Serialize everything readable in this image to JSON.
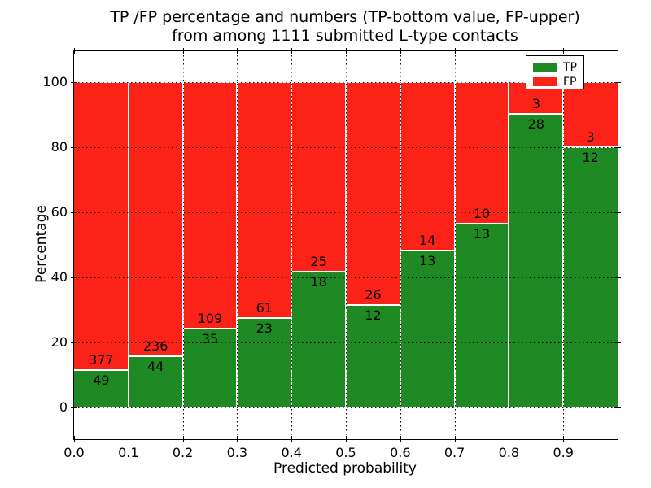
{
  "chart_data": {
    "type": "bar",
    "variant": "stacked-percentage-histogram",
    "title_lines": [
      "TP /FP percentage and numbers (TP-bottom value, FP-upper)",
      "from among 1111 submitted L-type contacts"
    ],
    "xlabel": "Predicted probability",
    "ylabel": "Percentage",
    "xlim": [
      0.0,
      1.0
    ],
    "ylim": [
      -10,
      110
    ],
    "bin_width": 0.1,
    "x_tick_labels": [
      "0.0",
      "0.1",
      "0.2",
      "0.3",
      "0.4",
      "0.5",
      "0.6",
      "0.7",
      "0.8",
      "0.9"
    ],
    "y_tick_labels": [
      "0",
      "20",
      "40",
      "60",
      "80",
      "100"
    ],
    "categories": [
      "0.0-0.1",
      "0.1-0.2",
      "0.2-0.3",
      "0.3-0.4",
      "0.4-0.5",
      "0.5-0.6",
      "0.6-0.7",
      "0.7-0.8",
      "0.8-0.9",
      "0.9-1.0"
    ],
    "series": [
      {
        "name": "TP",
        "color": "#1f8a23",
        "counts": [
          49,
          44,
          35,
          23,
          18,
          12,
          13,
          13,
          28,
          12
        ],
        "percent": [
          11.5,
          15.71,
          24.31,
          27.38,
          41.86,
          31.58,
          48.15,
          56.52,
          90.32,
          80.0
        ]
      },
      {
        "name": "FP",
        "color": "#fb2318",
        "counts": [
          377,
          236,
          109,
          61,
          25,
          26,
          14,
          10,
          3,
          3
        ],
        "percent": [
          88.5,
          84.29,
          75.69,
          72.62,
          58.14,
          68.42,
          51.85,
          43.48,
          9.68,
          20.0
        ]
      }
    ],
    "total": 1111,
    "legend": {
      "position": "upper-right",
      "entries": [
        "TP",
        "FP"
      ]
    },
    "grid": {
      "style": "dotted",
      "color": "#000000",
      "above_bars": true
    }
  }
}
